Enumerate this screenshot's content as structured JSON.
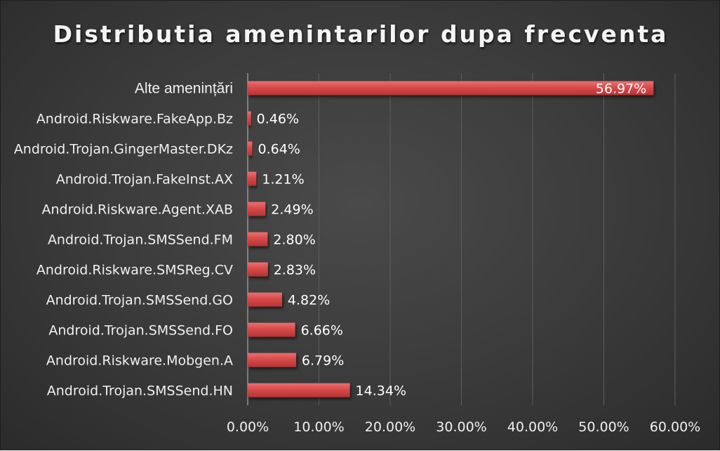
{
  "chart_data": {
    "type": "bar",
    "orientation": "horizontal",
    "title": "Distributia amenintarilor dupa frecventa",
    "categories": [
      "Alte amenințări",
      "Android.Riskware.FakeApp.Bz",
      "Android.Trojan.GingerMaster.DKz",
      "Android.Trojan.FakeInst.AX",
      "Android.Riskware.Agent.XAB",
      "Android.Trojan.SMSSend.FM",
      "Android.Riskware.SMSReg.CV",
      "Android.Trojan.SMSSend.GO",
      "Android.Trojan.SMSSend.FO",
      "Android.Riskware.Mobgen.A",
      "Android.Trojan.SMSSend.HN"
    ],
    "values": [
      56.97,
      0.46,
      0.64,
      1.21,
      2.49,
      2.8,
      2.83,
      4.82,
      6.66,
      6.79,
      14.34
    ],
    "data_labels": [
      "56.97%",
      "0.46%",
      "0.64%",
      "1.21%",
      "2.49%",
      "2.80%",
      "2.83%",
      "4.82%",
      "6.66%",
      "6.79%",
      "14.34%"
    ],
    "xlim": [
      0,
      60
    ],
    "x_ticks": [
      "0.00%",
      "10.00%",
      "20.00%",
      "30.00%",
      "40.00%",
      "50.00%",
      "60.00%"
    ],
    "grid": true,
    "bar_color": "#d94a4a",
    "background_color": "#3c3c3c"
  }
}
